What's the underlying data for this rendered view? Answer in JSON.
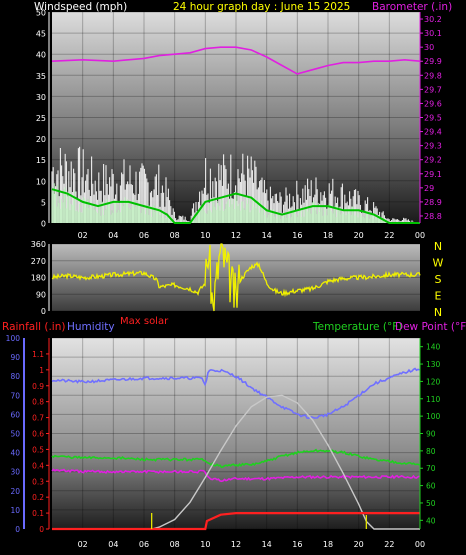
{
  "header": {
    "windspeed_label": "Windspeed (mph)",
    "title": "24 hour graph day : June 15 2025",
    "barometer_label": "Barometer (.in)"
  },
  "labels": {
    "rainfall": "Rainfall (.in)",
    "humidity": "Humidity",
    "max_solar": "Max solar",
    "temperature": "Temperature (°F)",
    "dew_point": "Dew Point (°F)"
  },
  "colors": {
    "barometer": "#e020e0",
    "wind_avg": "#00c000",
    "wind_gust": "#ffffff",
    "wind_dir": "#f0f000",
    "rainfall": "#ff2020",
    "humidity": "#7070ff",
    "temperature": "#20d020",
    "dew_point": "#e020e0",
    "solar": "#c8c8c8",
    "right_axis": "#20d020",
    "rain_axis": "#ff2020",
    "humidity_axis": "#6a6aff"
  },
  "chart_data": [
    {
      "type": "line",
      "name": "wind-barometer",
      "x_tick_labels": [
        "02",
        "04",
        "06",
        "08",
        "10",
        "12",
        "14",
        "16",
        "18",
        "20",
        "22",
        "00"
      ],
      "y_left_ticks": [
        0,
        5,
        10,
        15,
        20,
        25,
        30,
        35,
        40,
        45,
        50
      ],
      "ylim_left": [
        0,
        50
      ],
      "y_right_ticks": [
        "28.8",
        "28.9",
        "29",
        "29.1",
        "29.2",
        "29.3",
        "29.4",
        "29.5",
        "29.6",
        "29.7",
        "29.8",
        "29.9",
        "30",
        "30.1",
        "30.2"
      ],
      "ylim_right": [
        28.75,
        30.25
      ],
      "series": [
        {
          "name": "Barometer",
          "axis": "right",
          "x": [
            0,
            2,
            4,
            6,
            7,
            8,
            9,
            10,
            11,
            12,
            13,
            14,
            15,
            16,
            17,
            18,
            19,
            20,
            21,
            22,
            23,
            24
          ],
          "values": [
            29.9,
            29.91,
            29.9,
            29.92,
            29.94,
            29.95,
            29.96,
            29.99,
            30.0,
            30.0,
            29.98,
            29.93,
            29.87,
            29.81,
            29.84,
            29.87,
            29.89,
            29.89,
            29.9,
            29.9,
            29.91,
            29.9
          ]
        },
        {
          "name": "Wind Gust",
          "axis": "left",
          "x": [
            0,
            1,
            2,
            3,
            4,
            5,
            6,
            7,
            7.5,
            8,
            9,
            10,
            11,
            12,
            13,
            14,
            15,
            16,
            17,
            18,
            19,
            20,
            21,
            22,
            23,
            24
          ],
          "values": [
            15,
            15,
            14,
            11,
            12,
            12,
            11,
            11,
            8,
            2,
            1,
            14,
            13,
            14,
            13,
            7,
            6,
            8,
            9,
            9,
            8,
            6,
            4,
            1,
            1,
            0
          ]
        },
        {
          "name": "Wind Average",
          "axis": "left",
          "x": [
            0,
            1,
            2,
            3,
            4,
            5,
            6,
            7,
            7.5,
            8,
            9,
            10,
            11,
            12,
            13,
            14,
            15,
            16,
            17,
            18,
            19,
            20,
            21,
            22,
            23,
            24
          ],
          "values": [
            8,
            7,
            5,
            4,
            5,
            5,
            4,
            3,
            2,
            0,
            0,
            5,
            6,
            7,
            6,
            3,
            2,
            3,
            4,
            4,
            3,
            3,
            2,
            0,
            0,
            0
          ]
        }
      ]
    },
    {
      "type": "line",
      "name": "wind-direction",
      "x_tick_labels": [],
      "y_left_ticks": [
        0,
        90,
        180,
        270,
        360
      ],
      "ylim_left": [
        0,
        360
      ],
      "compass": [
        "N",
        "W",
        "S",
        "E",
        "N"
      ],
      "series": [
        {
          "name": "Wind Direction",
          "x": [
            0,
            1,
            2,
            3,
            4,
            5,
            6,
            6.8,
            7,
            8,
            9,
            9.5,
            10,
            10.2,
            10.5,
            11,
            12,
            12.2,
            13,
            13.5,
            14,
            14.5,
            15,
            16,
            17,
            18,
            19,
            20,
            21,
            22,
            23,
            24
          ],
          "values": [
            180,
            190,
            180,
            185,
            195,
            200,
            205,
            170,
            130,
            140,
            120,
            100,
            150,
            340,
            10,
            340,
            60,
            160,
            240,
            250,
            150,
            110,
            95,
            110,
            120,
            160,
            175,
            180,
            185,
            195,
            195,
            195
          ]
        }
      ]
    },
    {
      "type": "line",
      "name": "temperature-humidity-rain",
      "x_tick_labels": [
        "02",
        "04",
        "06",
        "08",
        "10",
        "12",
        "14",
        "16",
        "18",
        "20",
        "22",
        "00"
      ],
      "humidity_ticks": [
        0,
        10,
        20,
        30,
        40,
        50,
        60,
        70,
        80,
        90,
        100
      ],
      "ylim_humidity": [
        0,
        100
      ],
      "rain_ticks": [
        "0",
        "0.1",
        "0.2",
        "0.3",
        "0.4",
        "0.5",
        "0.6",
        "0.7",
        "0.8",
        "0.9",
        "1",
        "1.1"
      ],
      "ylim_rain": [
        0,
        1.2
      ],
      "temp_ticks": [
        40,
        50,
        60,
        70,
        80,
        90,
        100,
        110,
        120,
        130,
        140
      ],
      "ylim_temp": [
        35,
        145
      ],
      "series": [
        {
          "name": "Humidity",
          "axis": "humidity",
          "x": [
            0,
            2,
            4,
            6,
            8,
            9,
            9.8,
            10,
            10.2,
            11,
            12,
            13,
            14,
            15,
            16,
            17,
            18,
            19,
            20,
            21,
            22,
            23,
            24
          ],
          "values": [
            78,
            77,
            78,
            79,
            79,
            79,
            79,
            75,
            83,
            83,
            80,
            74,
            69,
            64,
            60,
            58,
            60,
            64,
            70,
            76,
            79,
            82,
            84
          ]
        },
        {
          "name": "Temperature",
          "axis": "temp",
          "x": [
            0,
            2,
            4,
            6,
            8,
            9,
            10,
            10.2,
            11,
            12,
            13,
            14,
            15,
            16,
            17,
            18,
            19,
            20,
            21,
            22,
            23,
            24
          ],
          "values": [
            77,
            76,
            76,
            75,
            75,
            75,
            75,
            73,
            71,
            72,
            72,
            74,
            77,
            79,
            80,
            80,
            79,
            77,
            75,
            74,
            73,
            72
          ]
        },
        {
          "name": "Dew Point",
          "axis": "temp",
          "x": [
            0,
            2,
            4,
            6,
            8,
            9,
            10,
            10.2,
            11,
            12,
            14,
            16,
            18,
            20,
            22,
            24
          ],
          "values": [
            69,
            68,
            68,
            68,
            68,
            68,
            68,
            64,
            63,
            64,
            64,
            65,
            65,
            65,
            65,
            65
          ]
        },
        {
          "name": "Max solar",
          "axis": "humidity",
          "x": [
            0,
            6.5,
            7,
            8,
            9,
            10,
            11,
            12,
            13,
            14,
            15,
            16,
            17,
            18,
            19,
            20,
            20.5,
            21,
            24
          ],
          "values": [
            0,
            0,
            1,
            5,
            14,
            27,
            41,
            54,
            64,
            69,
            70,
            66,
            57,
            44,
            29,
            13,
            4,
            0,
            0
          ]
        },
        {
          "name": "Rainfall",
          "axis": "rain",
          "x": [
            0,
            10,
            10.1,
            11,
            12,
            13,
            14,
            15,
            16,
            17,
            18,
            19,
            20,
            21,
            22,
            24
          ],
          "values": [
            0,
            0,
            0.05,
            0.09,
            0.1,
            0.1,
            0.1,
            0.1,
            0.1,
            0.1,
            0.1,
            0.1,
            0.1,
            0.1,
            0.1,
            0.1
          ]
        }
      ]
    }
  ]
}
